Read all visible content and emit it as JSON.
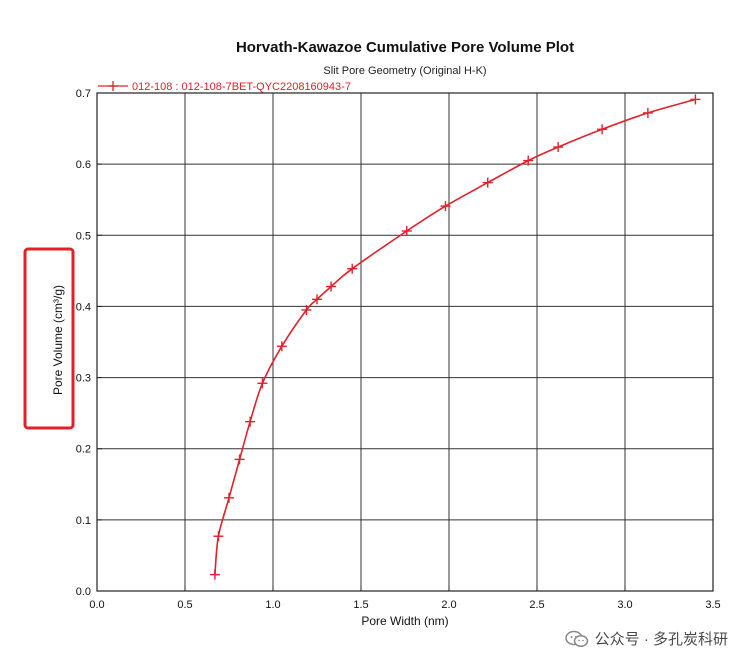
{
  "chart_data": {
    "type": "line",
    "title": "Horvath-Kawazoe Cumulative Pore Volume Plot",
    "subtitle": "Slit Pore Geometry (Original H-K)",
    "xlabel": "Pore Width (nm)",
    "ylabel": "Pore Volume (cm³/g)",
    "xlim": [
      0.0,
      3.5
    ],
    "ylim": [
      0.0,
      0.7
    ],
    "x_ticks": [
      "0.0",
      "0.5",
      "1.0",
      "1.5",
      "2.0",
      "2.5",
      "3.0",
      "3.5"
    ],
    "y_ticks": [
      "0.0",
      "0.1",
      "0.2",
      "0.3",
      "0.4",
      "0.5",
      "0.6",
      "0.7"
    ],
    "grid": true,
    "legend_position": "top-left",
    "series": [
      {
        "name": "012-108 : 012-108-7BET-QYC2208160943-7",
        "color": "#e0202a",
        "marker": "plus",
        "x": [
          0.67,
          0.69,
          0.75,
          0.81,
          0.87,
          0.94,
          1.05,
          1.19,
          1.25,
          1.33,
          1.45,
          1.76,
          1.98,
          2.22,
          2.45,
          2.62,
          2.87,
          3.13,
          3.4
        ],
        "y": [
          0.023,
          0.077,
          0.131,
          0.185,
          0.238,
          0.292,
          0.344,
          0.395,
          0.41,
          0.428,
          0.453,
          0.506,
          0.541,
          0.574,
          0.605,
          0.624,
          0.649,
          0.672,
          0.691
        ]
      }
    ]
  },
  "watermark": {
    "text": "公众号 · 多孔炭科研"
  },
  "colors": {
    "series": "#e0202a",
    "highlight_box": "#e0202a",
    "grid": "#333333"
  }
}
